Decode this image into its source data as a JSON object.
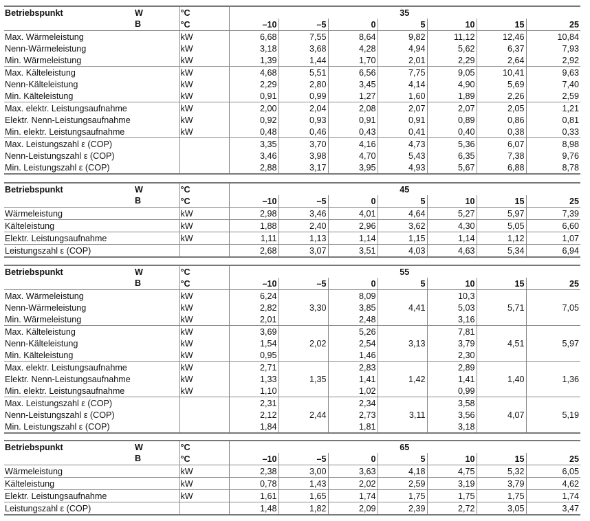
{
  "tables": [
    {
      "header": {
        "label": "Betriebspunkt",
        "w": "W",
        "b": "B",
        "unit_w": "°C",
        "unit_b": "°C",
        "temp": "35",
        "columns": [
          "–10",
          "–5",
          "0",
          "5",
          "10",
          "15",
          "25"
        ]
      },
      "groups": [
        {
          "rows": [
            {
              "label": "Max. Wärmeleistung",
              "unit": "kW",
              "values": [
                "6,68",
                "7,55",
                "8,64",
                "9,82",
                "11,12",
                "12,46",
                "10,84"
              ]
            },
            {
              "label": "Nenn-Wärmeleistung",
              "unit": "kW",
              "values": [
                "3,18",
                "3,68",
                "4,28",
                "4,94",
                "5,62",
                "6,37",
                "7,93"
              ]
            },
            {
              "label": "Min. Wärmeleistung",
              "unit": "kW",
              "values": [
                "1,39",
                "1,44",
                "1,70",
                "2,01",
                "2,29",
                "2,64",
                "2,92"
              ]
            }
          ]
        },
        {
          "rows": [
            {
              "label": "Max. Kälteleistung",
              "unit": "kW",
              "values": [
                "4,68",
                "5,51",
                "6,56",
                "7,75",
                "9,05",
                "10,41",
                "9,63"
              ]
            },
            {
              "label": "Nenn-Kälteleistung",
              "unit": "kW",
              "values": [
                "2,29",
                "2,80",
                "3,45",
                "4,14",
                "4,90",
                "5,69",
                "7,40"
              ]
            },
            {
              "label": "Min. Kälteleistung",
              "unit": "kW",
              "values": [
                "0,91",
                "0,99",
                "1,27",
                "1,60",
                "1,89",
                "2,26",
                "2,59"
              ]
            }
          ]
        },
        {
          "rows": [
            {
              "label": "Max. elektr. Leistungsaufnahme",
              "unit": "kW",
              "values": [
                "2,00",
                "2,04",
                "2,08",
                "2,07",
                "2,07",
                "2,05",
                "1,21"
              ]
            },
            {
              "label": "Elektr. Nenn-Leistungsaufnahme",
              "unit": "kW",
              "values": [
                "0,92",
                "0,93",
                "0,91",
                "0,91",
                "0,89",
                "0,86",
                "0,81"
              ]
            },
            {
              "label": "Min. elektr. Leistungsaufnahme",
              "unit": "kW",
              "values": [
                "0,48",
                "0,46",
                "0,43",
                "0,41",
                "0,40",
                "0,38",
                "0,33"
              ]
            }
          ]
        },
        {
          "rows": [
            {
              "label": "Max. Leistungszahl ε (COP)",
              "unit": "",
              "values": [
                "3,35",
                "3,70",
                "4,16",
                "4,73",
                "5,36",
                "6,07",
                "8,98"
              ]
            },
            {
              "label": "Nenn-Leistungszahl ε (COP)",
              "unit": "",
              "values": [
                "3,46",
                "3,98",
                "4,70",
                "5,43",
                "6,35",
                "7,38",
                "9,76"
              ]
            },
            {
              "label": "Min. Leistungszahl ε (COP)",
              "unit": "",
              "values": [
                "2,88",
                "3,17",
                "3,95",
                "4,93",
                "5,67",
                "6,88",
                "8,78"
              ]
            }
          ]
        }
      ]
    },
    {
      "header": {
        "label": "Betriebspunkt",
        "w": "W",
        "b": "B",
        "unit_w": "°C",
        "unit_b": "°C",
        "temp": "45",
        "columns": [
          "–10",
          "–5",
          "0",
          "5",
          "10",
          "15",
          "25"
        ]
      },
      "groups": [
        {
          "rows": [
            {
              "label": "Wärmeleistung",
              "unit": "kW",
              "values": [
                "2,98",
                "3,46",
                "4,01",
                "4,64",
                "5,27",
                "5,97",
                "7,39"
              ]
            }
          ]
        },
        {
          "rows": [
            {
              "label": "Kälteleistung",
              "unit": "kW",
              "values": [
                "1,88",
                "2,40",
                "2,96",
                "3,62",
                "4,30",
                "5,05",
                "6,60"
              ]
            }
          ]
        },
        {
          "rows": [
            {
              "label": "Elektr. Leistungsaufnahme",
              "unit": "kW",
              "values": [
                "1,11",
                "1,13",
                "1,14",
                "1,15",
                "1,14",
                "1,12",
                "1,07"
              ]
            }
          ]
        },
        {
          "rows": [
            {
              "label": "Leistungszahl ε (COP)",
              "unit": "",
              "values": [
                "2,68",
                "3,07",
                "3,51",
                "4,03",
                "4,63",
                "5,34",
                "6,94"
              ]
            }
          ]
        }
      ]
    },
    {
      "header": {
        "label": "Betriebspunkt",
        "w": "W",
        "b": "B",
        "unit_w": "°C",
        "unit_b": "°C",
        "temp": "55",
        "columns": [
          "–10",
          "–5",
          "0",
          "5",
          "10",
          "15",
          "25"
        ]
      },
      "groups": [
        {
          "merged": [
            null,
            "3,30",
            null,
            "4,41",
            null,
            "5,71",
            "7,05"
          ],
          "rows": [
            {
              "label": "Max. Wärmeleistung",
              "unit": "kW",
              "values": [
                "6,24",
                null,
                "8,09",
                null,
                "10,3",
                null,
                null
              ]
            },
            {
              "label": "Nenn-Wärmeleistung",
              "unit": "kW",
              "values": [
                "2,82",
                null,
                "3,85",
                null,
                "5,03",
                null,
                null
              ]
            },
            {
              "label": "Min. Wärmeleistung",
              "unit": "kW",
              "values": [
                "2,01",
                null,
                "2,48",
                null,
                "3,16",
                null,
                null
              ]
            }
          ]
        },
        {
          "merged": [
            null,
            "2,02",
            null,
            "3,13",
            null,
            "4,51",
            "5,97"
          ],
          "rows": [
            {
              "label": "Max. Kälteleistung",
              "unit": "kW",
              "values": [
                "3,69",
                null,
                "5,26",
                null,
                "7,81",
                null,
                null
              ]
            },
            {
              "label": "Nenn-Kälteleistung",
              "unit": "kW",
              "values": [
                "1,54",
                null,
                "2,54",
                null,
                "3,79",
                null,
                null
              ]
            },
            {
              "label": "Min. Kälteleistung",
              "unit": "kW",
              "values": [
                "0,95",
                null,
                "1,46",
                null,
                "2,30",
                null,
                null
              ]
            }
          ]
        },
        {
          "merged": [
            null,
            "1,35",
            null,
            "1,42",
            null,
            "1,40",
            "1,36"
          ],
          "rows": [
            {
              "label": "Max. elektr. Leistungsaufnahme",
              "unit": "kW",
              "values": [
                "2,71",
                null,
                "2,83",
                null,
                "2,89",
                null,
                null
              ]
            },
            {
              "label": "Elektr. Nenn-Leistungsaufnahme",
              "unit": "kW",
              "values": [
                "1,33",
                null,
                "1,41",
                null,
                "1,41",
                null,
                null
              ]
            },
            {
              "label": "Min. elektr. Leistungsaufnahme",
              "unit": "kW",
              "values": [
                "1,10",
                null,
                "1,02",
                null,
                "0,99",
                null,
                null
              ]
            }
          ]
        },
        {
          "merged": [
            null,
            "2,44",
            null,
            "3,11",
            null,
            "4,07",
            "5,19"
          ],
          "rows": [
            {
              "label": "Max. Leistungszahl ε (COP)",
              "unit": "",
              "values": [
                "2,31",
                null,
                "2,34",
                null,
                "3,58",
                null,
                null
              ]
            },
            {
              "label": "Nenn-Leistungszahl ε (COP)",
              "unit": "",
              "values": [
                "2,12",
                null,
                "2,73",
                null,
                "3,56",
                null,
                null
              ]
            },
            {
              "label": "Min. Leistungszahl ε (COP)",
              "unit": "",
              "values": [
                "1,84",
                null,
                "1,81",
                null,
                "3,18",
                null,
                null
              ]
            }
          ]
        }
      ]
    },
    {
      "header": {
        "label": "Betriebspunkt",
        "w": "W",
        "b": "B",
        "unit_w": "°C",
        "unit_b": "°C",
        "temp": "65",
        "columns": [
          "–10",
          "–5",
          "0",
          "5",
          "10",
          "15",
          "25"
        ]
      },
      "groups": [
        {
          "rows": [
            {
              "label": "Wärmeleistung",
              "unit": "kW",
              "values": [
                "2,38",
                "3,00",
                "3,63",
                "4,18",
                "4,75",
                "5,32",
                "6,05"
              ]
            }
          ]
        },
        {
          "rows": [
            {
              "label": "Kälteleistung",
              "unit": "kW",
              "values": [
                "0,78",
                "1,43",
                "2,02",
                "2,59",
                "3,19",
                "3,79",
                "4,62"
              ]
            }
          ]
        },
        {
          "rows": [
            {
              "label": "Elektr. Leistungsaufnahme",
              "unit": "kW",
              "values": [
                "1,61",
                "1,65",
                "1,74",
                "1,75",
                "1,75",
                "1,75",
                "1,74"
              ]
            }
          ]
        },
        {
          "rows": [
            {
              "label": "Leistungszahl ε (COP)",
              "unit": "",
              "values": [
                "1,48",
                "1,82",
                "2,09",
                "2,39",
                "2,72",
                "3,05",
                "3,47"
              ]
            }
          ]
        }
      ]
    }
  ]
}
